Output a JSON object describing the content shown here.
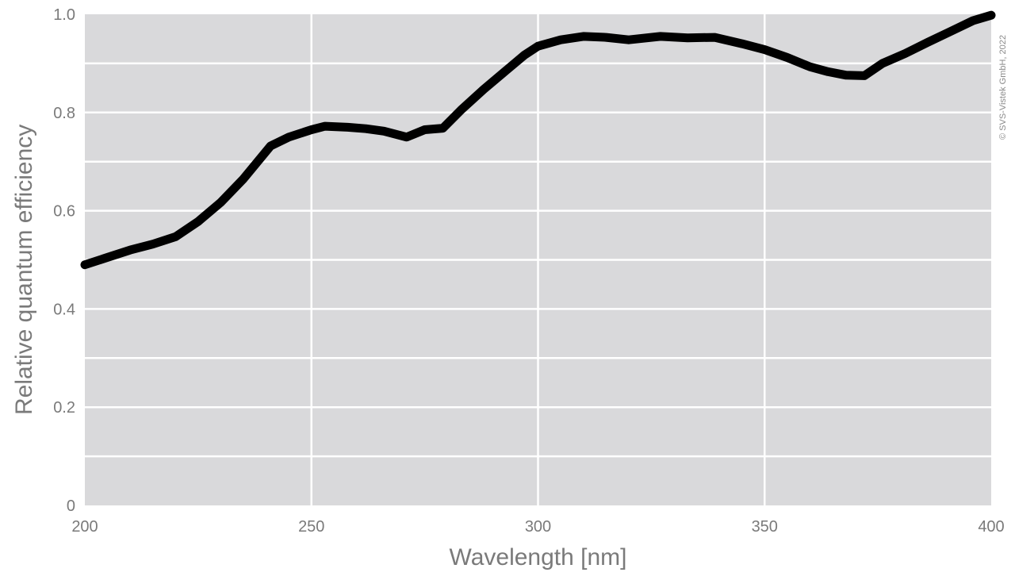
{
  "chart_data": {
    "type": "line",
    "title": "",
    "xlabel": "Wavelength [nm]",
    "ylabel": "Relative quantum efficiency",
    "xlim": [
      200,
      400
    ],
    "ylim": [
      0,
      1.0
    ],
    "x_ticks": [
      200,
      250,
      300,
      350,
      400
    ],
    "x_tick_labels": [
      "200",
      "250",
      "300",
      "350",
      "400"
    ],
    "y_ticks": [
      0,
      0.2,
      0.4,
      0.6,
      0.8,
      1.0
    ],
    "y_tick_labels": [
      "0",
      "0.2",
      "0.4",
      "0.6",
      "0.8",
      "1.0"
    ],
    "grid": true,
    "legend": "none",
    "colors": {
      "plot_background": "#d9d9db",
      "grid": "#ffffff",
      "line": "#000000"
    },
    "series": [
      {
        "x": [
          200,
          205,
          210,
          215,
          220,
          225,
          230,
          235,
          241,
          245,
          250,
          253,
          258,
          262,
          266,
          271,
          275,
          279,
          283,
          288,
          293,
          297,
          300,
          305,
          310,
          315,
          320,
          327,
          333,
          339,
          345,
          350,
          355,
          360,
          364,
          368,
          372,
          376,
          381,
          386,
          391,
          396,
          400
        ],
        "y": [
          0.49,
          0.505,
          0.52,
          0.532,
          0.547,
          0.578,
          0.617,
          0.665,
          0.732,
          0.75,
          0.765,
          0.772,
          0.77,
          0.767,
          0.762,
          0.75,
          0.765,
          0.768,
          0.805,
          0.847,
          0.886,
          0.917,
          0.935,
          0.948,
          0.955,
          0.953,
          0.948,
          0.955,
          0.952,
          0.953,
          0.94,
          0.928,
          0.912,
          0.893,
          0.883,
          0.876,
          0.875,
          0.9,
          0.92,
          0.943,
          0.965,
          0.987,
          0.998
        ]
      }
    ],
    "annotations": [
      "© SVS-Vistek GmbH, 2022"
    ]
  }
}
